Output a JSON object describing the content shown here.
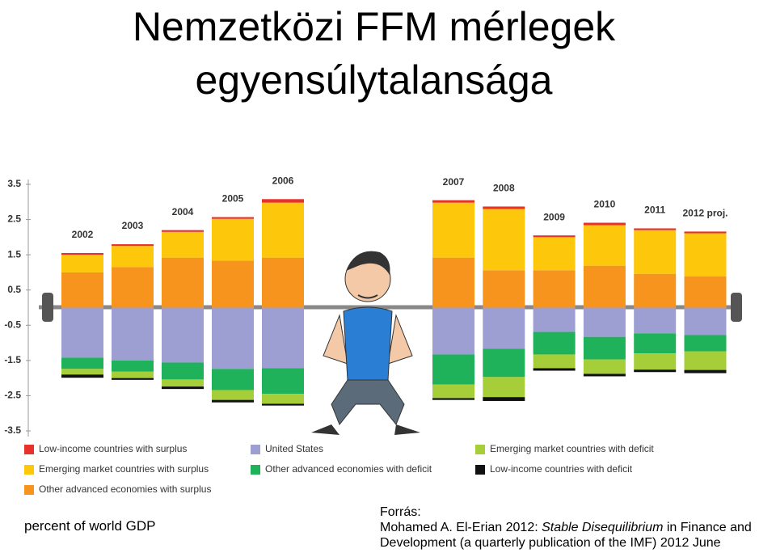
{
  "title": [
    "Nemzetközi FFM mérlegek",
    "egyensúlytalansága"
  ],
  "unit_note": "percent of world GDP",
  "source": {
    "label": "Forrás:",
    "before": "Mohamed A. El-Erian 2012: ",
    "italic": "Stable Disequilibrium",
    "after": " in Finance and Development (a quarterly publication of the IMF) 2012 June"
  },
  "chart_data": {
    "type": "stacked-bar",
    "categories": [
      "2002",
      "2003",
      "2004",
      "2005",
      "2006",
      "2007",
      "2008",
      "2009",
      "2010",
      "2011",
      "2012 proj."
    ],
    "series": [
      {
        "name": "Other advanced economies with surplus",
        "color": "#f7941d",
        "values": [
          1.0,
          1.15,
          1.42,
          1.33,
          1.42,
          1.42,
          1.06,
          1.06,
          1.19,
          0.96,
          0.89
        ]
      },
      {
        "name": "Emerging market countries with surplus",
        "color": "#fdc70c",
        "values": [
          0.5,
          0.6,
          0.73,
          1.19,
          1.56,
          1.56,
          1.74,
          0.94,
          1.15,
          1.24,
          1.22
        ]
      },
      {
        "name": "Low-income countries with surplus",
        "color": "#e8312a",
        "values": [
          0.05,
          0.05,
          0.05,
          0.05,
          0.1,
          0.07,
          0.07,
          0.05,
          0.07,
          0.05,
          0.05
        ]
      },
      {
        "name": "United States",
        "color": "#9d9fd3",
        "values": [
          -1.42,
          -1.5,
          -1.56,
          -1.74,
          -1.72,
          -1.33,
          -1.17,
          -0.69,
          -0.83,
          -0.73,
          -0.78
        ]
      },
      {
        "name": "Other advanced economies with deficit",
        "color": "#1fb25a",
        "values": [
          -0.32,
          -0.32,
          -0.48,
          -0.6,
          -0.73,
          -0.85,
          -0.8,
          -0.64,
          -0.64,
          -0.57,
          -0.46
        ]
      },
      {
        "name": "Emerging market countries with deficit",
        "color": "#a6ce39",
        "values": [
          -0.16,
          -0.18,
          -0.2,
          -0.28,
          -0.28,
          -0.39,
          -0.57,
          -0.39,
          -0.41,
          -0.46,
          -0.53
        ]
      },
      {
        "name": "Low-income countries with deficit",
        "color": "#111111",
        "values": [
          -0.09,
          -0.05,
          -0.07,
          -0.07,
          -0.05,
          -0.05,
          -0.11,
          -0.07,
          -0.07,
          -0.07,
          -0.09
        ]
      }
    ],
    "ylim": [
      -3.5,
      3.5
    ],
    "yticks": [
      3.5,
      2.5,
      1.5,
      0.5,
      -0.5,
      -1.5,
      -2.5,
      -3.5
    ],
    "grid": false
  }
}
